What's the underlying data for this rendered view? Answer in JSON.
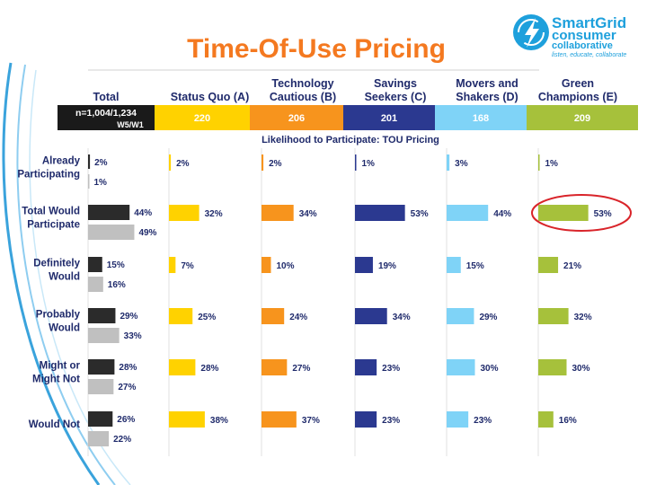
{
  "page": {
    "title": "Time-Of-Use Pricing",
    "subtitle": "Likelihood to Participate: TOU Pricing",
    "logo": {
      "line1": "SmartGrid",
      "line2": "consumer",
      "line3": "collaborative",
      "tagline": "listen, educate, collaborate",
      "icon": "lightning-bolt-icon"
    },
    "total_header": "Total",
    "total_sample": "n=1,004/1,234",
    "total_waves": "W5/W1"
  },
  "chart_data": {
    "type": "bar",
    "orientation": "horizontal",
    "title": "Likelihood to Participate: TOU Pricing",
    "categories": [
      "Already Participating",
      "Total Would Participate",
      "Definitely Would",
      "Probably Would",
      "Might or Might Not",
      "Would Not"
    ],
    "panels": [
      {
        "name": "Total",
        "sample": "n=1,004/1,234 W5/W1",
        "series": [
          {
            "name": "W5",
            "color": "#2b2b2b",
            "values": [
              2,
              44,
              15,
              29,
              28,
              26
            ]
          },
          {
            "name": "W1",
            "color": "#c0c0c0",
            "values": [
              1,
              49,
              16,
              33,
              27,
              22
            ]
          }
        ]
      },
      {
        "name": "Status Quo (A)",
        "n": "220",
        "color": "#ffd200",
        "values": [
          2,
          32,
          7,
          25,
          28,
          38
        ]
      },
      {
        "name": "Technology Cautious (B)",
        "n": "206",
        "color": "#f7941d",
        "values": [
          2,
          34,
          10,
          24,
          27,
          37
        ]
      },
      {
        "name": "Savings Seekers (C)",
        "n": "201",
        "color": "#2b3990",
        "values": [
          1,
          53,
          19,
          34,
          23,
          23
        ]
      },
      {
        "name": "Movers and Shakers (D)",
        "n": "168",
        "color": "#7fd3f7",
        "values": [
          3,
          44,
          15,
          29,
          30,
          23
        ]
      },
      {
        "name": "Green Champions (E)",
        "n": "209",
        "color": "#a6c13b",
        "values": [
          1,
          53,
          21,
          32,
          30,
          16
        ]
      }
    ],
    "highlight": {
      "panel": "Green Champions (E)",
      "category": "Total Would Participate",
      "color": "#d9242a"
    },
    "value_format": "{v}%",
    "grid": false,
    "legend": "none"
  }
}
